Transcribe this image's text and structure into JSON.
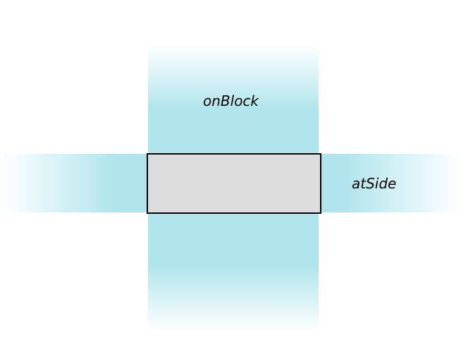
{
  "regions": {
    "on_block": {
      "label": "onBlock"
    },
    "at_side": {
      "label": "atSide"
    }
  },
  "colors": {
    "region_fill": "#b0e5ed",
    "block_fill": "#dcdcdc",
    "block_stroke": "#000000",
    "background": "#ffffff"
  }
}
